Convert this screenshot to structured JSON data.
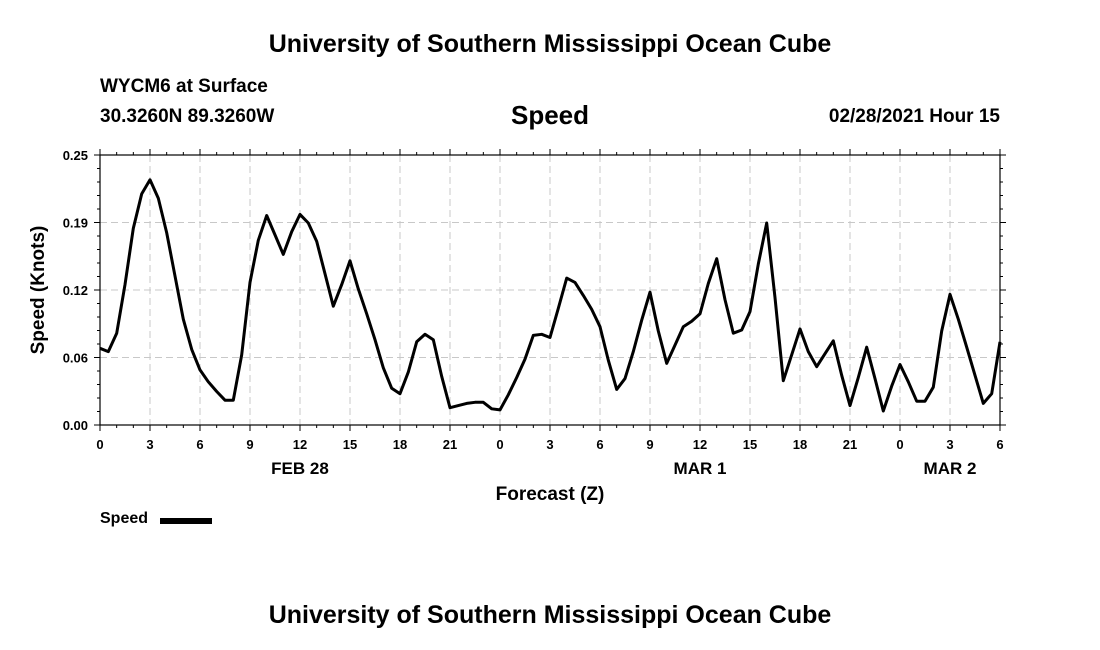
{
  "header": {
    "title_top": "University of Southern Mississippi Ocean Cube",
    "station": "WYCM6 at Surface",
    "coords": "30.3260N 89.3260W",
    "variable": "Speed",
    "datetime": "02/28/2021 Hour 15",
    "title_bottom": "University of Southern Mississippi Ocean Cube"
  },
  "legend": {
    "label": "Speed",
    "color": "#000000"
  },
  "chart_data": {
    "type": "line",
    "title": "Speed",
    "xlabel": "Forecast (Z)",
    "ylabel": "Speed (Knots)",
    "ylim": [
      0,
      0.25
    ],
    "y_ticks": [
      "0.00",
      "0.06",
      "0.12",
      "0.19",
      "0.25"
    ],
    "x_range_hours": [
      0,
      54
    ],
    "x_ticks": [
      "0",
      "3",
      "6",
      "9",
      "12",
      "15",
      "18",
      "21",
      "0",
      "3",
      "6",
      "9",
      "12",
      "15",
      "18",
      "21",
      "0",
      "3",
      "6"
    ],
    "day_labels": [
      {
        "label": "FEB 28",
        "hour": 12
      },
      {
        "label": "MAR 1",
        "hour": 36
      },
      {
        "label": "MAR 2",
        "hour": 51
      }
    ],
    "grid": true,
    "series": [
      {
        "name": "Speed",
        "color": "#000000",
        "x": [
          0,
          0.5,
          1,
          1.5,
          2,
          2.5,
          3,
          3.5,
          4,
          4.5,
          5,
          5.5,
          6,
          6.5,
          7,
          7.5,
          8,
          8.5,
          9,
          9.5,
          10,
          10.5,
          11,
          11.5,
          12,
          12.5,
          13,
          13.5,
          14,
          14.5,
          15,
          15.5,
          16,
          16.5,
          17,
          17.5,
          18,
          18.5,
          19,
          19.5,
          20,
          20.5,
          21,
          21.5,
          22,
          22.5,
          23,
          23.5,
          24,
          24.5,
          25,
          25.5,
          26,
          26.5,
          27,
          27.5,
          28,
          28.5,
          29,
          29.5,
          30,
          30.5,
          31,
          31.5,
          32,
          32.5,
          33,
          33.5,
          34,
          34.5,
          35,
          35.5,
          36,
          36.5,
          37,
          37.5,
          38,
          38.5,
          39,
          39.5,
          40,
          40.5,
          41,
          41.5,
          42,
          42.5,
          43,
          43.5,
          44,
          44.5,
          45,
          45.5,
          46,
          46.5,
          47,
          47.5,
          48,
          48.5,
          49,
          49.5,
          50,
          50.5,
          51,
          51.5,
          52,
          52.5,
          53,
          53.5,
          54
        ],
        "values": [
          0.071,
          0.068,
          0.085,
          0.13,
          0.182,
          0.214,
          0.227,
          0.21,
          0.178,
          0.138,
          0.098,
          0.07,
          0.051,
          0.04,
          0.031,
          0.023,
          0.023,
          0.065,
          0.132,
          0.171,
          0.194,
          0.176,
          0.158,
          0.179,
          0.195,
          0.187,
          0.17,
          0.14,
          0.11,
          0.13,
          0.152,
          0.126,
          0.103,
          0.079,
          0.053,
          0.034,
          0.029,
          0.049,
          0.077,
          0.084,
          0.079,
          0.045,
          0.016,
          0.018,
          0.02,
          0.021,
          0.021,
          0.015,
          0.014,
          0.028,
          0.044,
          0.061,
          0.083,
          0.084,
          0.081,
          0.108,
          0.136,
          0.132,
          0.12,
          0.107,
          0.091,
          0.06,
          0.033,
          0.043,
          0.068,
          0.097,
          0.123,
          0.087,
          0.057,
          0.074,
          0.091,
          0.096,
          0.103,
          0.131,
          0.154,
          0.116,
          0.085,
          0.088,
          0.105,
          0.149,
          0.187,
          0.118,
          0.041,
          0.065,
          0.089,
          0.068,
          0.054,
          0.066,
          0.078,
          0.046,
          0.018,
          0.044,
          0.072,
          0.043,
          0.013,
          0.036,
          0.056,
          0.04,
          0.022,
          0.022,
          0.035,
          0.087,
          0.121,
          0.098,
          0.072,
          0.046,
          0.02,
          0.029,
          0.077
        ]
      }
    ]
  }
}
